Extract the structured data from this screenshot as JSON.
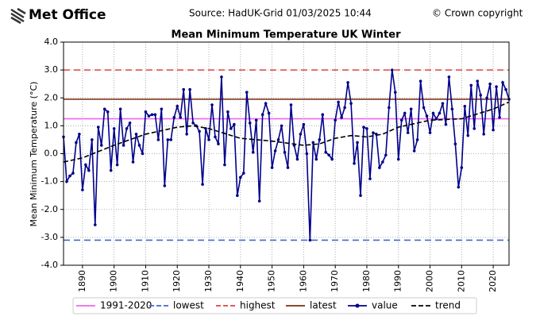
{
  "header": {
    "logo": "Met Office",
    "source": "Source: HadUK-Grid 01/03/2025 10:44",
    "copyright": "© Crown copyright"
  },
  "chart_data": {
    "type": "line",
    "title": "Mean Minimum Temperature UK Winter",
    "ylabel": "Mean Minimum Temperature (°C)",
    "xlim": [
      1884,
      2025
    ],
    "ylim": [
      -4,
      4
    ],
    "xticks": [
      1890,
      1900,
      1910,
      1920,
      1930,
      1940,
      1950,
      1960,
      1970,
      1980,
      1990,
      2000,
      2010,
      2020
    ],
    "yticks": [
      {
        "value": -4,
        "label": "-4.0"
      },
      {
        "value": -3,
        "label": "-3.0"
      },
      {
        "value": -2,
        "label": "-2.0"
      },
      {
        "value": -1,
        "label": "-1.0"
      },
      {
        "value": 0,
        "label": "0.0"
      },
      {
        "value": 1,
        "label": "1.0"
      },
      {
        "value": 2,
        "label": "2.0"
      },
      {
        "value": 3,
        "label": "3.0"
      },
      {
        "value": 4,
        "label": "4.0"
      }
    ],
    "grid": true,
    "legend": "bottom",
    "reference_lines": [
      {
        "name": "1991-2020",
        "value": 1.25,
        "color": "#ee66ee",
        "style": "solid"
      },
      {
        "name": "lowest",
        "value": -3.1,
        "color": "#4466cc",
        "style": "dashed"
      },
      {
        "name": "highest",
        "value": 3.0,
        "color": "#dd4444",
        "style": "dashed"
      },
      {
        "name": "latest",
        "value": 1.95,
        "color": "#7a2e10",
        "style": "solid"
      }
    ],
    "series": [
      {
        "name": "value",
        "color": "#00008b",
        "x": [
          1884,
          1885,
          1886,
          1887,
          1888,
          1889,
          1890,
          1891,
          1892,
          1893,
          1894,
          1895,
          1896,
          1897,
          1898,
          1899,
          1900,
          1901,
          1902,
          1903,
          1904,
          1905,
          1906,
          1907,
          1908,
          1909,
          1910,
          1911,
          1912,
          1913,
          1914,
          1915,
          1916,
          1917,
          1918,
          1919,
          1920,
          1921,
          1922,
          1923,
          1924,
          1925,
          1926,
          1927,
          1928,
          1929,
          1930,
          1931,
          1932,
          1933,
          1934,
          1935,
          1936,
          1937,
          1938,
          1939,
          1940,
          1941,
          1942,
          1943,
          1944,
          1945,
          1946,
          1947,
          1948,
          1949,
          1950,
          1951,
          1952,
          1953,
          1954,
          1955,
          1956,
          1957,
          1958,
          1959,
          1960,
          1961,
          1962,
          1963,
          1964,
          1965,
          1966,
          1967,
          1968,
          1969,
          1970,
          1971,
          1972,
          1973,
          1974,
          1975,
          1976,
          1977,
          1978,
          1979,
          1980,
          1981,
          1982,
          1983,
          1984,
          1985,
          1986,
          1987,
          1988,
          1989,
          1990,
          1991,
          1992,
          1993,
          1994,
          1995,
          1996,
          1997,
          1998,
          1999,
          2000,
          2001,
          2002,
          2003,
          2004,
          2005,
          2006,
          2007,
          2008,
          2009,
          2010,
          2011,
          2012,
          2013,
          2014,
          2015,
          2016,
          2017,
          2018,
          2019,
          2020,
          2021,
          2022,
          2023,
          2024,
          2025
        ],
        "values": [
          0.6,
          -1.0,
          -0.8,
          -0.7,
          0.4,
          0.7,
          -1.3,
          -0.4,
          -0.6,
          0.5,
          -2.55,
          0.95,
          0.3,
          1.6,
          1.5,
          -0.6,
          0.9,
          -0.4,
          1.6,
          0.3,
          0.9,
          1.1,
          -0.3,
          0.7,
          0.3,
          0.0,
          1.5,
          1.35,
          1.4,
          1.4,
          0.5,
          1.6,
          -1.15,
          0.5,
          0.5,
          1.3,
          1.7,
          1.3,
          2.3,
          0.7,
          2.3,
          1.1,
          1.0,
          0.8,
          -1.1,
          0.9,
          0.5,
          1.75,
          0.6,
          0.35,
          2.75,
          -0.4,
          1.5,
          0.9,
          1.05,
          -1.5,
          -0.85,
          -0.7,
          2.2,
          1.1,
          0.05,
          1.2,
          -1.7,
          1.4,
          1.8,
          1.45,
          -0.5,
          0.1,
          0.5,
          1.0,
          0.05,
          -0.5,
          1.75,
          0.3,
          -0.2,
          0.7,
          1.05,
          0.0,
          -3.1,
          0.4,
          -0.2,
          0.5,
          1.4,
          0.05,
          -0.05,
          -0.2,
          1.2,
          1.85,
          1.3,
          1.65,
          2.55,
          1.8,
          -0.35,
          0.4,
          -1.5,
          0.95,
          0.9,
          -0.9,
          0.75,
          0.7,
          -0.5,
          -0.3,
          -0.05,
          1.65,
          3.0,
          2.2,
          -0.2,
          1.2,
          1.45,
          0.75,
          1.6,
          0.1,
          0.5,
          2.6,
          1.65,
          1.35,
          0.75,
          1.45,
          1.25,
          1.45,
          1.8,
          1.05,
          2.75,
          1.6,
          0.35,
          -1.2,
          -0.5,
          1.7,
          0.65,
          2.45,
          0.9,
          2.6,
          2.1,
          0.7,
          2.0,
          2.5,
          0.85,
          2.4,
          1.3,
          2.55,
          2.3,
          1.95
        ]
      },
      {
        "name": "trend",
        "color": "#000000",
        "x": [
          1884,
          1890,
          1900,
          1910,
          1920,
          1925,
          1930,
          1940,
          1950,
          1960,
          1965,
          1970,
          1975,
          1980,
          1985,
          1990,
          2000,
          2010,
          2020,
          2025
        ],
        "values": [
          -0.3,
          -0.15,
          0.3,
          0.7,
          0.95,
          1.0,
          0.9,
          0.55,
          0.45,
          0.3,
          0.35,
          0.55,
          0.65,
          0.6,
          0.7,
          0.95,
          1.2,
          1.25,
          1.6,
          1.85
        ]
      }
    ]
  }
}
